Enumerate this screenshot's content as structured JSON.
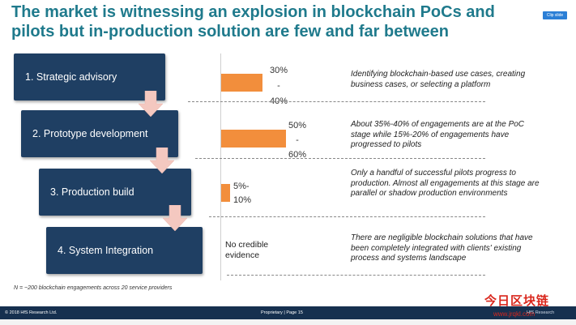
{
  "title": "The market is witnessing an explosion in blockchain PoCs and pilots but in-production solution are few and far between",
  "clip_badge": "Clip slide",
  "stages": [
    {
      "label": "1. Strategic advisory",
      "pct_text": "30%\n-\n40%",
      "description": "Identifying blockchain-based use cases, creating business cases, or selecting a platform"
    },
    {
      "label": "2. Prototype development",
      "pct_text": "50%\n-\n60%",
      "description": "About 35%-40% of engagements are at the PoC stage while 15%-20% of engagements have progressed to pilots"
    },
    {
      "label": "3. Production build",
      "pct_text": "5%-\n10%",
      "description": "Only a handful of successful pilots progress to production. Almost all engagements at this stage are parallel or shadow production environments"
    },
    {
      "label": "4. System Integration",
      "pct_text": "No credible evidence",
      "description": "There are negligible blockchain solutions that have been completely integrated with clients' existing process and systems landscape"
    }
  ],
  "bar_values_pct": [
    35,
    55,
    7.5,
    0
  ],
  "footnote": "N = ~200 blockchain engagements across 20 service providers",
  "footer": {
    "left": "© 2018 HfS Research Ltd.",
    "center": "Proprietary | Page 15",
    "right": "HfS Research"
  },
  "watermark": {
    "line1": "今日区块链",
    "line2": "www.jrqkl.com"
  },
  "colors": {
    "title": "#1f7a8c",
    "box": "#1f3f63",
    "bar": "#f28e3c",
    "arrow": "#f4c8c0"
  }
}
